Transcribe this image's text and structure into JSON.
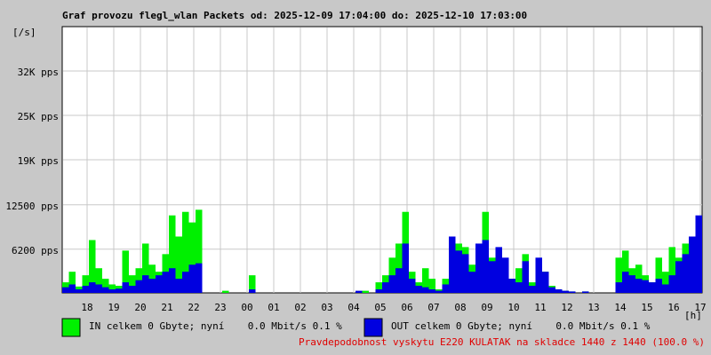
{
  "chart_data": {
    "type": "bar",
    "title": "Graf provozu flegl_wlan Packets od: 2025-12-09 17:04:00 do: 2025-12-10 17:03:00",
    "y_label": "[/s]",
    "x_label": "[h]",
    "xlim": [
      0,
      1440
    ],
    "ylim": [
      0,
      37800
    ],
    "grid": true,
    "xticks": [
      {
        "value": 56,
        "label": "18"
      },
      {
        "value": 116,
        "label": "19"
      },
      {
        "value": 176,
        "label": "20"
      },
      {
        "value": 236,
        "label": "21"
      },
      {
        "value": 296,
        "label": "22"
      },
      {
        "value": 356,
        "label": "23"
      },
      {
        "value": 416,
        "label": "00"
      },
      {
        "value": 476,
        "label": "01"
      },
      {
        "value": 536,
        "label": "02"
      },
      {
        "value": 596,
        "label": "03"
      },
      {
        "value": 656,
        "label": "04"
      },
      {
        "value": 716,
        "label": "05"
      },
      {
        "value": 776,
        "label": "06"
      },
      {
        "value": 836,
        "label": "07"
      },
      {
        "value": 896,
        "label": "08"
      },
      {
        "value": 956,
        "label": "09"
      },
      {
        "value": 1016,
        "label": "10"
      },
      {
        "value": 1076,
        "label": "11"
      },
      {
        "value": 1136,
        "label": "12"
      },
      {
        "value": 1196,
        "label": "13"
      },
      {
        "value": 1256,
        "label": "14"
      },
      {
        "value": 1316,
        "label": "15"
      },
      {
        "value": 1376,
        "label": "16"
      },
      {
        "value": 1436,
        "label": "17"
      }
    ],
    "yticks": [
      {
        "value": 6200,
        "label": "6200 pps"
      },
      {
        "value": 12500,
        "label": "12500 pps"
      },
      {
        "value": 18900,
        "label": "19K pps"
      },
      {
        "value": 25200,
        "label": "25K pps"
      },
      {
        "value": 31500,
        "label": "32K pps"
      }
    ],
    "x": [
      0,
      15,
      30,
      45,
      60,
      75,
      90,
      105,
      120,
      135,
      150,
      165,
      180,
      195,
      210,
      225,
      240,
      255,
      270,
      285,
      300,
      315,
      330,
      345,
      360,
      375,
      390,
      405,
      420,
      435,
      450,
      465,
      480,
      495,
      510,
      525,
      540,
      555,
      570,
      585,
      600,
      615,
      630,
      645,
      660,
      675,
      690,
      705,
      720,
      735,
      750,
      765,
      780,
      795,
      810,
      825,
      840,
      855,
      870,
      885,
      900,
      915,
      930,
      945,
      960,
      975,
      990,
      1005,
      1020,
      1035,
      1050,
      1065,
      1080,
      1095,
      1110,
      1125,
      1140,
      1155,
      1170,
      1185,
      1200,
      1215,
      1230,
      1245,
      1260,
      1275,
      1290,
      1305,
      1320,
      1335,
      1350,
      1365,
      1380,
      1395,
      1410,
      1425
    ],
    "series": [
      {
        "name": "IN celkem 0 Gbyte; nyní    0.0 Mbit/s 0.1 %",
        "color": "#00f000",
        "values": [
          1500,
          3000,
          900,
          2500,
          7500,
          3500,
          2000,
          1200,
          1000,
          6000,
          2500,
          3500,
          7000,
          4000,
          3000,
          5500,
          11000,
          8000,
          11500,
          10000,
          11800,
          0,
          0,
          0,
          300,
          0,
          0,
          0,
          2500,
          0,
          0,
          0,
          0,
          0,
          0,
          0,
          0,
          0,
          0,
          0,
          0,
          0,
          0,
          0,
          0,
          300,
          0,
          1500,
          2500,
          5000,
          7000,
          11500,
          3000,
          1500,
          3500,
          2000,
          500,
          2000,
          5500,
          7000,
          6500,
          4000,
          6000,
          11500,
          5000,
          3500,
          4500,
          2000,
          3500,
          5500,
          1500,
          3500,
          3000,
          1000,
          500,
          300,
          200,
          0,
          200,
          0,
          0,
          0,
          0,
          5000,
          6000,
          3500,
          4000,
          2500,
          1500,
          5000,
          3000,
          6500,
          5000,
          7000,
          7500,
          9000
        ]
      },
      {
        "name": "OUT celkem 0 Gbyte; nyní    0.0 Mbit/s 0.1 %",
        "color": "#0000e0",
        "values": [
          800,
          1200,
          500,
          1000,
          1500,
          1200,
          800,
          500,
          600,
          1500,
          1000,
          1800,
          2500,
          2000,
          2500,
          3000,
          3500,
          2000,
          3000,
          4000,
          4200,
          0,
          0,
          0,
          0,
          0,
          0,
          0,
          500,
          0,
          0,
          0,
          0,
          0,
          0,
          0,
          0,
          0,
          0,
          0,
          0,
          0,
          0,
          0,
          300,
          0,
          0,
          500,
          1500,
          2500,
          3500,
          7000,
          2000,
          1000,
          800,
          500,
          300,
          1200,
          8000,
          6000,
          5500,
          3000,
          7000,
          7500,
          4500,
          6500,
          5000,
          2000,
          1500,
          4500,
          1000,
          5000,
          3000,
          800,
          500,
          300,
          200,
          0,
          200,
          0,
          0,
          0,
          0,
          1500,
          3000,
          2500,
          2000,
          1800,
          1500,
          2000,
          1200,
          2500,
          4500,
          5500,
          8000,
          11000
        ]
      }
    ],
    "note": "Pravdepodobnost vyskytu E220 KULATAK na skladce 1440 z 1440 (100.0 %)"
  }
}
